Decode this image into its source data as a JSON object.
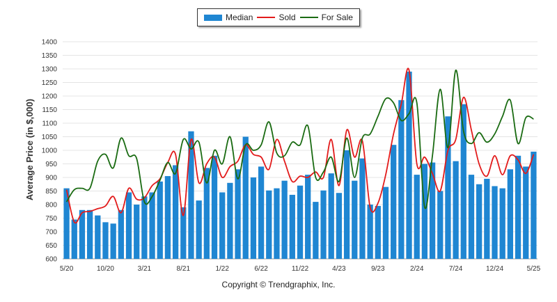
{
  "colors": {
    "median": "#1f86d2",
    "sold": "#e21b1b",
    "for_sale": "#1a6b12",
    "grid": "#e4e4e4",
    "axis_text": "#333333"
  },
  "legend": {
    "median": "Median",
    "sold": "Sold",
    "for_sale": "For Sale"
  },
  "footer": {
    "copyright": "Copyright © Trendgraphix, Inc."
  },
  "chart_data": {
    "type": "bar",
    "ylabel": "Average Price (in $,000)",
    "ylim": [
      600,
      1400
    ],
    "yticks": [
      600,
      650,
      700,
      750,
      800,
      850,
      900,
      950,
      1000,
      1050,
      1100,
      1150,
      1200,
      1250,
      1300,
      1350,
      1400
    ],
    "grid": true,
    "legend_position": "top-center",
    "x_tick_labels": [
      {
        "label": "5/20",
        "index": 0
      },
      {
        "label": "10/20",
        "index": 5
      },
      {
        "label": "3/21",
        "index": 10
      },
      {
        "label": "8/21",
        "index": 15
      },
      {
        "label": "1/22",
        "index": 20
      },
      {
        "label": "6/22",
        "index": 25
      },
      {
        "label": "11/22",
        "index": 30
      },
      {
        "label": "4/23",
        "index": 35
      },
      {
        "label": "9/23",
        "index": 40
      },
      {
        "label": "2/24",
        "index": 45
      },
      {
        "label": "7/24",
        "index": 50
      },
      {
        "label": "12/24",
        "index": 55
      },
      {
        "label": "5/25",
        "index": 60
      }
    ],
    "categories": [
      "5/20",
      "6/20",
      "7/20",
      "8/20",
      "9/20",
      "10/20",
      "11/20",
      "12/20",
      "1/21",
      "2/21",
      "3/21",
      "4/21",
      "5/21",
      "6/21",
      "7/21",
      "8/21",
      "9/21",
      "10/21",
      "11/21",
      "12/21",
      "1/22",
      "2/22",
      "3/22",
      "4/22",
      "5/22",
      "6/22",
      "7/22",
      "8/22",
      "9/22",
      "10/22",
      "11/22",
      "12/22",
      "1/23",
      "2/23",
      "3/23",
      "4/23",
      "5/23",
      "6/23",
      "7/23",
      "8/23",
      "9/23",
      "10/23",
      "11/23",
      "12/23",
      "1/24",
      "2/24",
      "3/24",
      "4/24",
      "5/24",
      "6/24",
      "7/24",
      "8/24",
      "9/24",
      "10/24",
      "11/24",
      "12/24",
      "1/25",
      "2/25",
      "3/25",
      "4/25",
      "5/25"
    ],
    "series": [
      {
        "name": "Median",
        "kind": "bar",
        "values": [
          860,
          745,
          780,
          780,
          760,
          735,
          730,
          780,
          845,
          800,
          830,
          845,
          885,
          905,
          945,
          790,
          1070,
          815,
          935,
          980,
          845,
          880,
          930,
          1050,
          900,
          940,
          852,
          860,
          888,
          836,
          870,
          910,
          810,
          852,
          915,
          843,
          1000,
          888,
          970,
          800,
          795,
          865,
          1020,
          1185,
          1290,
          910,
          950,
          955,
          850,
          1125,
          960,
          1170,
          910,
          875,
          895,
          868,
          860,
          930,
          980,
          940,
          995
        ]
      },
      {
        "name": "Sold",
        "kind": "line",
        "values": [
          855,
          735,
          770,
          775,
          785,
          795,
          830,
          770,
          860,
          820,
          825,
          870,
          895,
          955,
          985,
          760,
          1040,
          880,
          950,
          975,
          900,
          940,
          960,
          1020,
          985,
          975,
          930,
          1040,
          960,
          885,
          905,
          900,
          920,
          900,
          1040,
          870,
          1075,
          975,
          1035,
          790,
          805,
          910,
          1060,
          1170,
          1295,
          950,
          975,
          915,
          850,
          1000,
          1040,
          1195,
          1075,
          950,
          905,
          980,
          910,
          980,
          965,
          915,
          985
        ]
      },
      {
        "name": "For Sale",
        "kind": "line",
        "values": [
          810,
          855,
          860,
          860,
          960,
          985,
          935,
          1045,
          980,
          970,
          810,
          830,
          890,
          955,
          915,
          1040,
          1005,
          1030,
          880,
          1000,
          950,
          1050,
          895,
          1020,
          1000,
          1020,
          1105,
          990,
          980,
          1030,
          1020,
          1090,
          900,
          920,
          975,
          885,
          1045,
          900,
          1045,
          1060,
          1125,
          1190,
          1175,
          1110,
          1135,
          1175,
          790,
          980,
          1225,
          1010,
          1295,
          1070,
          1025,
          1065,
          1030,
          1060,
          1125,
          1185,
          1025,
          1120,
          1115
        ]
      }
    ]
  }
}
